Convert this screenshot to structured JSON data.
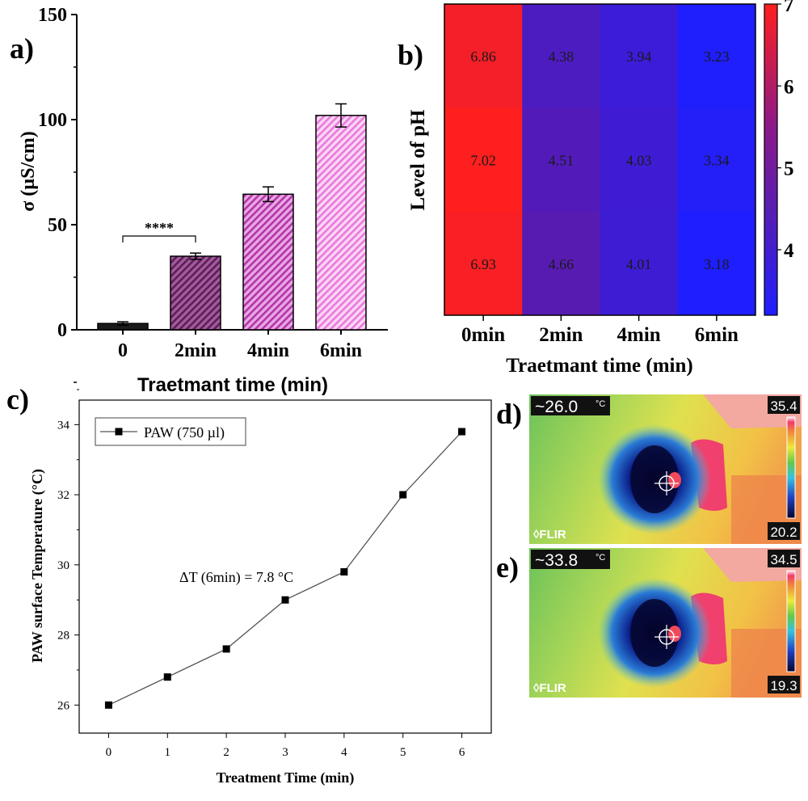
{
  "panels": {
    "a": {
      "letter": "a)"
    },
    "b": {
      "letter": "b)"
    },
    "c": {
      "letter": "c)"
    },
    "d": {
      "letter": "d)"
    },
    "e": {
      "letter": "e)"
    }
  },
  "chart_data": [
    {
      "id": "a",
      "type": "bar",
      "categories": [
        "0",
        "2min",
        "4min",
        "6min"
      ],
      "values": [
        3,
        35,
        64.5,
        102
      ],
      "errors": [
        0.8,
        1.5,
        3.5,
        5.5
      ],
      "ylabel": "σ  (µS/cm)",
      "xlabel": "Traetmant time (min)",
      "ylim": [
        0,
        150
      ],
      "yticks": [
        0,
        50,
        100,
        150
      ],
      "significance": {
        "from": "0",
        "to": "2min",
        "label": "****"
      },
      "colors": [
        "#1a1a1a",
        "#7a2f73",
        "#c84cc0",
        "#ee88e0"
      ]
    },
    {
      "id": "b",
      "type": "heatmap",
      "columns": [
        "0min",
        "2min",
        "4min",
        "6min"
      ],
      "rows": 3,
      "values": [
        [
          6.86,
          4.38,
          3.94,
          3.23
        ],
        [
          7.02,
          4.51,
          4.03,
          3.34
        ],
        [
          6.93,
          4.66,
          4.01,
          3.18
        ]
      ],
      "value_labels": [
        [
          "6.86",
          "4.38",
          "3.94",
          "3.23"
        ],
        [
          "7.02",
          "4.51",
          "4.03",
          "3.34"
        ],
        [
          "6.93",
          "4.66",
          "4.01",
          "3.18"
        ]
      ],
      "ylabel": "Level of pH",
      "xlabel": "Traetmant time (min)",
      "colorbar": {
        "min": 3.2,
        "max": 7.0,
        "ticks": [
          "4",
          "5",
          "6",
          "7"
        ],
        "low_color": "#1e1eff",
        "mid_color": "#6a1a9a",
        "high_color": "#ff1f1f"
      }
    },
    {
      "id": "c",
      "type": "line",
      "x": [
        0,
        1,
        2,
        3,
        4,
        5,
        6
      ],
      "series": [
        {
          "name": "PAW (750 µl)",
          "values": [
            26.0,
            26.8,
            27.6,
            29.0,
            29.8,
            32.0,
            33.8
          ]
        }
      ],
      "xlabel": "Treatment Time (min)",
      "ylabel": "PAW surface Temperature (°C)",
      "xlim": [
        -0.5,
        6.5
      ],
      "ylim": [
        25.2,
        34.7
      ],
      "xticks": [
        "0",
        "1",
        "2",
        "3",
        "4",
        "5",
        "6"
      ],
      "yticks": [
        "26",
        "28",
        "30",
        "32",
        "34"
      ],
      "annotation": "ΔT (6min) = 7.8 °C",
      "legend": "top-left"
    }
  ],
  "thermal": [
    {
      "id": "d",
      "spot_temp": "~26.0",
      "unit": "°C",
      "scale_max": "35.4",
      "scale_min": "20.2",
      "brand": "FLIR"
    },
    {
      "id": "e",
      "spot_temp": "~33.8",
      "unit": "°C",
      "scale_max": "34.5",
      "scale_min": "19.3",
      "brand": "FLIR"
    }
  ]
}
